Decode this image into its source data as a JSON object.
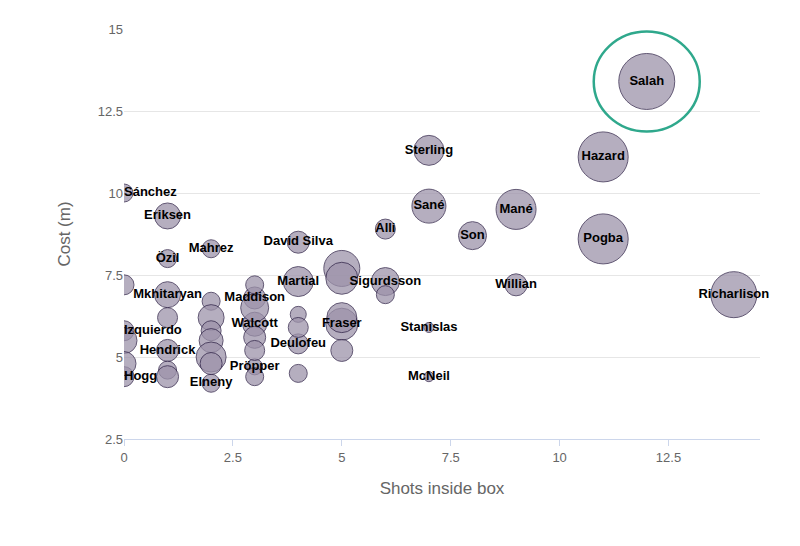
{
  "chart_data": {
    "type": "scatter",
    "marker": "circle",
    "xlabel": "Shots inside box",
    "ylabel": "Cost (m)",
    "labels": [
      "Salah",
      "Hazard",
      "Sterling",
      "Sané",
      "Mané",
      "Pogba",
      "Son",
      "Alli",
      "Willian",
      "Richarlison",
      "Sánchez",
      "Eriksen",
      "Mahrez",
      "Özil",
      "David Silva",
      "Martial",
      "Sigurdsson",
      "Mkhitaryan",
      "Izquierdo",
      "Hendrick",
      "Hogg",
      "Maddison",
      "Walcott",
      "Deulofeu",
      "Fraser",
      "Stanislas",
      "McNeil",
      "Pröpper",
      "Elneny",
      null,
      null,
      null,
      null,
      null,
      null,
      null,
      null,
      null,
      null,
      null,
      null,
      null,
      null,
      null,
      null,
      null,
      null,
      null,
      null,
      null,
      null,
      null,
      null,
      null
    ],
    "x": [
      12,
      11,
      7,
      7,
      9,
      11,
      8,
      6,
      9,
      14,
      0,
      1,
      2,
      1,
      4,
      4,
      6,
      1,
      0,
      1,
      0,
      3,
      3,
      4,
      5,
      7,
      7,
      3,
      2,
      5,
      5,
      1,
      1,
      1,
      2,
      2,
      2,
      2,
      2,
      2,
      3,
      3,
      3,
      3,
      3,
      4,
      4,
      4,
      5,
      5,
      6,
      0,
      0,
      0
    ],
    "values": [
      13.4,
      11.1,
      11.3,
      9.6,
      9.5,
      8.6,
      8.7,
      8.9,
      7.2,
      6.9,
      10.0,
      9.3,
      8.3,
      8.0,
      8.5,
      7.3,
      7.3,
      6.9,
      5.8,
      5.2,
      4.4,
      6.8,
      6.0,
      5.4,
      6.0,
      5.9,
      4.4,
      4.7,
      4.2,
      7.7,
      7.4,
      6.2,
      4.6,
      4.4,
      6.7,
      6.2,
      5.8,
      5.5,
      5.0,
      4.8,
      7.2,
      6.5,
      5.6,
      5.2,
      4.4,
      6.3,
      5.9,
      4.5,
      6.2,
      5.2,
      6.9,
      7.2,
      5.5,
      4.8
    ],
    "sizes": [
      56,
      50,
      30,
      34,
      40,
      50,
      28,
      20,
      22,
      46,
      18,
      26,
      18,
      18,
      22,
      30,
      28,
      26,
      20,
      22,
      20,
      22,
      24,
      20,
      32,
      10,
      10,
      16,
      18,
      36,
      32,
      20,
      18,
      22,
      18,
      26,
      20,
      24,
      30,
      22,
      18,
      28,
      22,
      20,
      18,
      16,
      20,
      18,
      30,
      22,
      18,
      20,
      26,
      24
    ],
    "color": "#9d93aa",
    "xlim": [
      0,
      14.6
    ],
    "ylim": [
      2.5,
      15
    ],
    "xticks": [
      0,
      2.5,
      5,
      7.5,
      10,
      12.5
    ],
    "yticks": [
      2.5,
      5,
      7.5,
      10,
      12.5,
      15
    ],
    "grid": true
  }
}
